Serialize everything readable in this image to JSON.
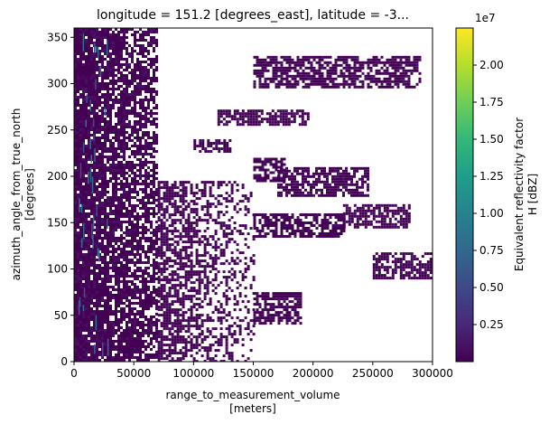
{
  "chart_data": {
    "type": "heatmap",
    "title": "longitude = 151.2 [degrees_east], latitude = -3...",
    "xlabel_line1": "range_to_measurement_volume",
    "xlabel_line2": "[meters]",
    "ylabel_line1": "azimuth_angle_from_true_north",
    "ylabel_line2": "[degrees]",
    "xlim": [
      0,
      300000
    ],
    "ylim": [
      0,
      360
    ],
    "xticks": [
      0,
      50000,
      100000,
      150000,
      200000,
      250000,
      300000
    ],
    "xtick_labels": [
      "0",
      "50000",
      "100000",
      "150000",
      "200000",
      "250000",
      "300000"
    ],
    "yticks": [
      0,
      50,
      100,
      150,
      200,
      250,
      300,
      350
    ],
    "ytick_labels": [
      "0",
      "50",
      "100",
      "150",
      "200",
      "250",
      "300",
      "350"
    ],
    "colorbar": {
      "label_line1": "Equivalent reflectivity factor",
      "label_line2": "H [dBZ]",
      "exponent_label": "1e7",
      "range": [
        0,
        22500000
      ],
      "ticks": [
        2500000,
        5000000,
        7500000,
        10000000,
        12500000,
        15000000,
        17500000,
        20000000
      ],
      "tick_labels": [
        "0.25",
        "0.50",
        "0.75",
        "1.00",
        "1.25",
        "1.50",
        "1.75",
        "2.00"
      ],
      "colormap": "viridis",
      "colors": [
        "#440154",
        "#482878",
        "#3e4989",
        "#31688e",
        "#26828e",
        "#1f9e89",
        "#35b779",
        "#6ece58",
        "#b5de2b",
        "#fde725"
      ]
    },
    "data_regions": [
      {
        "x0": 0,
        "x1": 70000,
        "y0": 0,
        "y1": 360
      },
      {
        "x0": 70000,
        "x1": 150000,
        "y0": 0,
        "y1": 195
      },
      {
        "x0": 150000,
        "x1": 175000,
        "y0": 195,
        "y1": 220
      },
      {
        "x0": 150000,
        "x1": 225000,
        "y0": 135,
        "y1": 160
      },
      {
        "x0": 170000,
        "x1": 245000,
        "y0": 180,
        "y1": 210
      },
      {
        "x0": 225000,
        "x1": 280000,
        "y0": 145,
        "y1": 170
      },
      {
        "x0": 150000,
        "x1": 290000,
        "y0": 295,
        "y1": 330
      },
      {
        "x0": 100000,
        "x1": 130000,
        "y0": 228,
        "y1": 240
      },
      {
        "x0": 120000,
        "x1": 195000,
        "y0": 256,
        "y1": 272
      },
      {
        "x0": 250000,
        "x1": 300000,
        "y0": 90,
        "y1": 118
      },
      {
        "x0": 150000,
        "x1": 190000,
        "y0": 40,
        "y1": 75
      }
    ],
    "grid": false
  }
}
